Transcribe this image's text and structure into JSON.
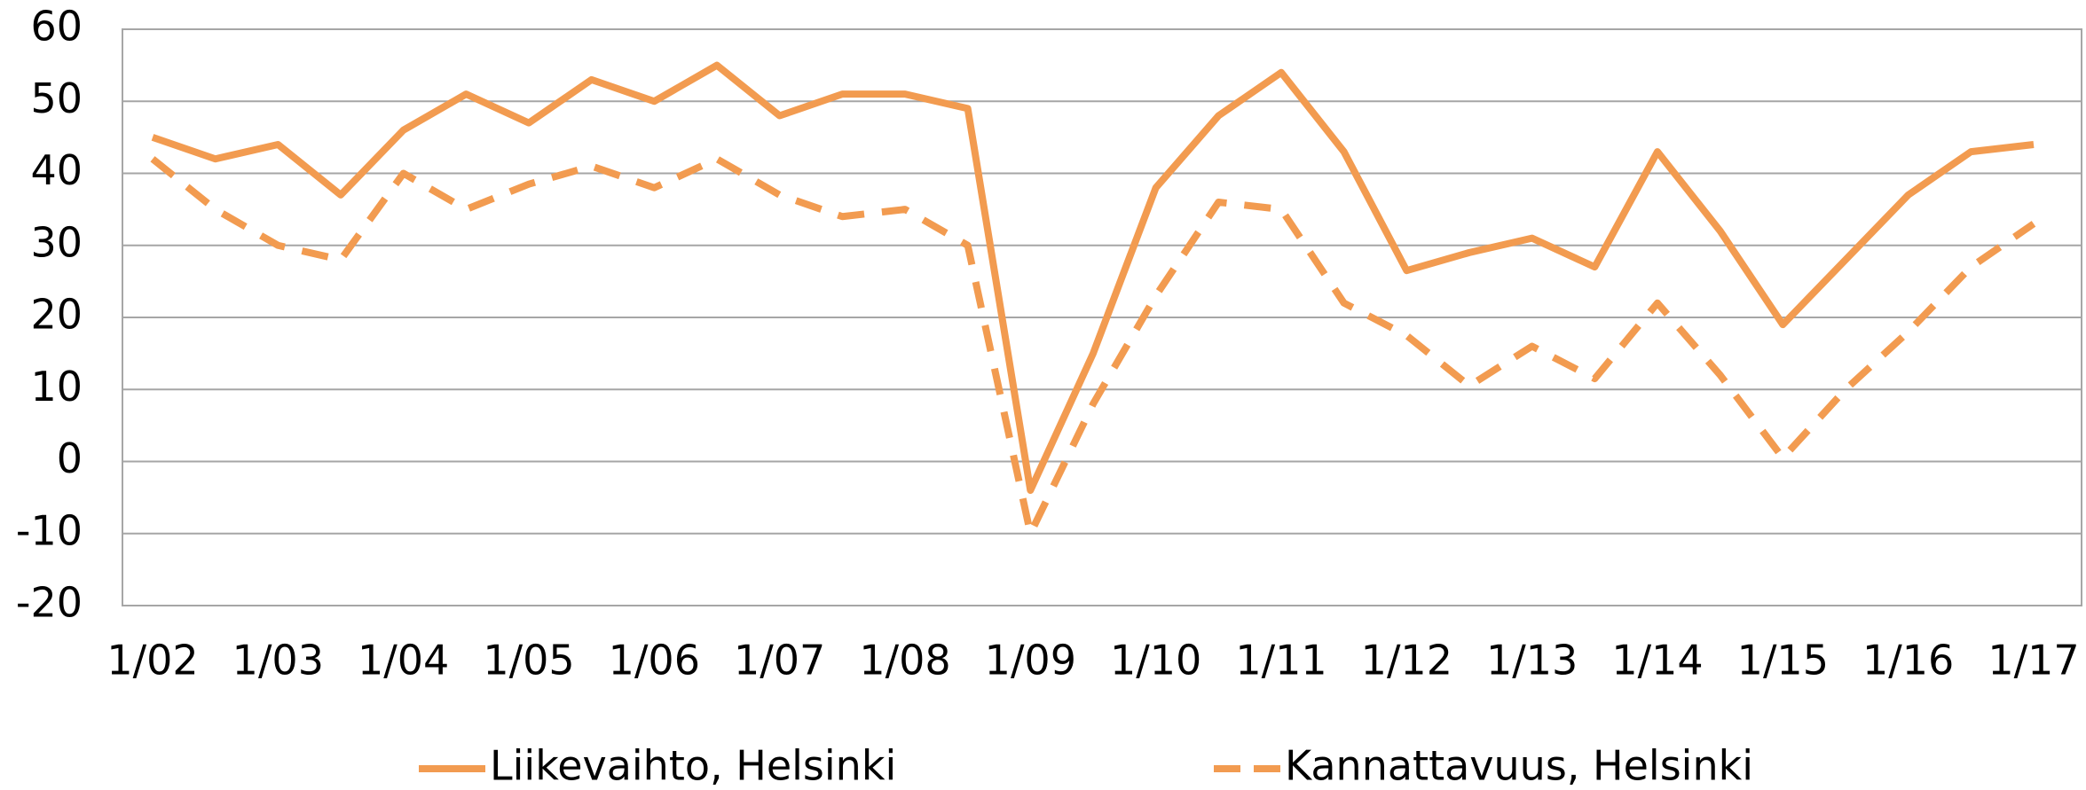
{
  "chart_data": {
    "type": "line",
    "categories": [
      "1/02",
      null,
      "1/03",
      null,
      "1/04",
      null,
      "1/05",
      null,
      "1/06",
      null,
      "1/07",
      null,
      "1/08",
      null,
      "1/09",
      null,
      "1/10",
      null,
      "1/11",
      null,
      "1/12",
      null,
      "1/13",
      null,
      "1/14",
      null,
      "1/15",
      null,
      "1/16",
      null,
      "1/17"
    ],
    "series": [
      {
        "name": "Liikevaihto, Helsinki",
        "color": "#f29b50",
        "dashed": false,
        "values": [
          45,
          42,
          44,
          37,
          46,
          51,
          47,
          53,
          50,
          55,
          48,
          51,
          51,
          49,
          -4,
          15,
          38,
          48,
          54,
          43,
          26.5,
          29,
          31,
          27,
          43,
          32,
          19,
          28,
          37,
          43,
          44
        ]
      },
      {
        "name": "Kannattavuus, Helsinki",
        "color": "#f29b50",
        "dashed": true,
        "values": [
          42,
          35,
          30,
          28,
          40,
          35,
          38.5,
          41,
          38,
          42,
          37,
          34,
          35,
          30,
          -10,
          8,
          23,
          36,
          35,
          22,
          17.5,
          10.5,
          16,
          11.5,
          22,
          12,
          0.5,
          10,
          18,
          27,
          33
        ]
      }
    ],
    "ylim": [
      -20,
      60
    ],
    "yticks": [
      -20,
      -10,
      0,
      10,
      20,
      30,
      40,
      50,
      60
    ],
    "grid": true,
    "legend": "bottom"
  }
}
